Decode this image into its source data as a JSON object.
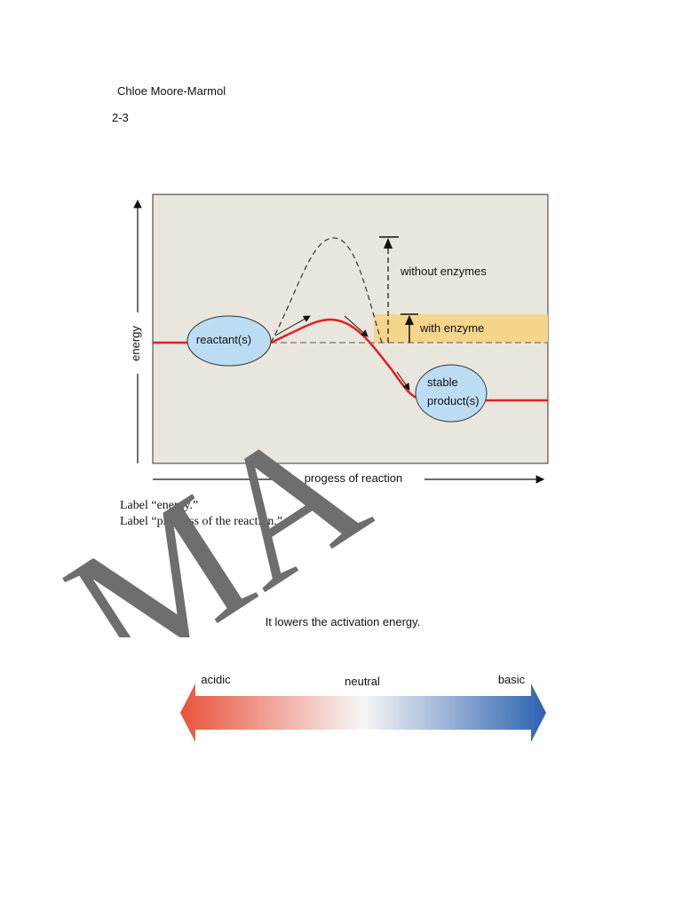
{
  "header": {
    "author": "Chloe Moore-Marmol",
    "section": "2-3"
  },
  "diagram": {
    "y_axis_label": "energy",
    "x_axis_label": "progess of reaction",
    "reactant": "reactant(s)",
    "product_line1": "stable",
    "product_line2": "product(s)",
    "without_enzymes": "without enzymes",
    "with_enzyme": "with enzyme"
  },
  "instructions": [
    "Label “energy.”",
    "Label “progress of the reaction.”"
  ],
  "answer": "It lowers the activation energy.",
  "ph_scale": {
    "left": "acidic",
    "middle": "neutral",
    "right": "basic"
  },
  "watermark": "MA"
}
